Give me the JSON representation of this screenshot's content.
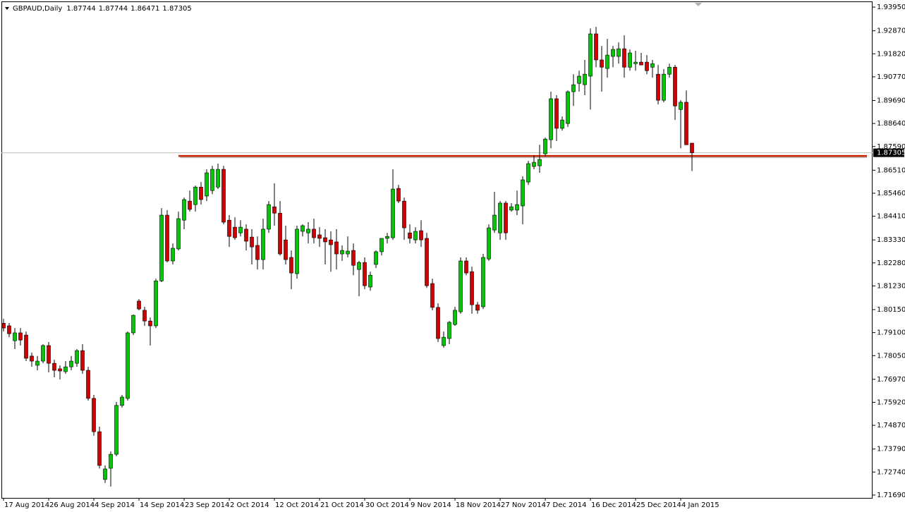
{
  "chart_data": {
    "type": "candlestick",
    "title": "GBPAUD,Daily",
    "up_color": "#00c800",
    "down_color": "#d00000",
    "support_line": {
      "value": 1.8716,
      "color": "#cc2200"
    },
    "ylim": [
      1.7156,
      1.9421
    ],
    "yticks": [
      {
        "value": 1.9395,
        "label": "1.93950"
      },
      {
        "value": 1.9287,
        "label": "1.92870"
      },
      {
        "value": 1.9182,
        "label": "1.91820"
      },
      {
        "value": 1.9077,
        "label": "1.90770"
      },
      {
        "value": 1.8969,
        "label": "1.89690"
      },
      {
        "value": 1.8864,
        "label": "1.88640"
      },
      {
        "value": 1.8759,
        "label": "1.87590"
      },
      {
        "value": 1.8651,
        "label": "1.86510"
      },
      {
        "value": 1.8546,
        "label": "1.85460"
      },
      {
        "value": 1.8441,
        "label": "1.84410"
      },
      {
        "value": 1.8333,
        "label": "1.83330"
      },
      {
        "value": 1.8228,
        "label": "1.82280"
      },
      {
        "value": 1.8123,
        "label": "1.81230"
      },
      {
        "value": 1.8015,
        "label": "1.80150"
      },
      {
        "value": 1.791,
        "label": "1.79100"
      },
      {
        "value": 1.7805,
        "label": "1.78050"
      },
      {
        "value": 1.7697,
        "label": "1.76970"
      },
      {
        "value": 1.7592,
        "label": "1.75920"
      },
      {
        "value": 1.7487,
        "label": "1.74870"
      },
      {
        "value": 1.7379,
        "label": "1.73790"
      },
      {
        "value": 1.7274,
        "label": "1.72740"
      },
      {
        "value": 1.7169,
        "label": "1.71690"
      }
    ],
    "categories": [
      "17 Aug 2014",
      null,
      null,
      null,
      null,
      null,
      null,
      null,
      "26 Aug 2014",
      null,
      null,
      null,
      null,
      null,
      null,
      null,
      "4 Sep 2014",
      null,
      null,
      null,
      null,
      null,
      null,
      null,
      "14 Sep 2014",
      null,
      null,
      null,
      null,
      null,
      null,
      null,
      "23 Sep 2014",
      null,
      null,
      null,
      null,
      null,
      null,
      null,
      "2 Oct 2014",
      null,
      null,
      null,
      null,
      null,
      null,
      null,
      "12 Oct 2014",
      null,
      null,
      null,
      null,
      null,
      null,
      null,
      "21 Oct 2014",
      null,
      null,
      null,
      null,
      null,
      null,
      null,
      "30 Oct 2014",
      null,
      null,
      null,
      null,
      null,
      null,
      null,
      "9 Nov 2014",
      null,
      null,
      null,
      null,
      null,
      null,
      null,
      "18 Nov 2014",
      null,
      null,
      null,
      null,
      null,
      null,
      null,
      "27 Nov 2014",
      null,
      null,
      null,
      null,
      null,
      null,
      null,
      "7 Dec 2014",
      null,
      null,
      null,
      null,
      null,
      null,
      null,
      "16 Dec 2014",
      null,
      null,
      null,
      null,
      null,
      null,
      null,
      "25 Dec 2014",
      null,
      null,
      null,
      null,
      null,
      null,
      null,
      "4 Jan 2015",
      null,
      null
    ],
    "open": [
      1.7953,
      1.7941,
      1.7873,
      1.7909,
      1.7899,
      1.7803,
      1.7761,
      1.778,
      1.7851,
      1.777,
      1.7745,
      1.7732,
      1.7754,
      1.777,
      1.7828,
      1.7738,
      1.761,
      1.7458,
      1.724,
      1.7291,
      1.7355,
      1.7578,
      1.761,
      1.7909,
      1.8054,
      1.8012,
      1.7963,
      1.7941,
      1.8146,
      1.8446,
      1.8237,
      1.8292,
      1.8423,
      1.851,
      1.8494,
      1.8574,
      1.8533,
      1.8558,
      1.8574,
      1.8655,
      1.8423,
      1.8391,
      1.8365,
      1.8382,
      1.8346,
      1.8308,
      1.8243,
      1.8382,
      1.8484,
      1.8455,
      1.8333,
      1.8253,
      1.8179,
      1.8372,
      1.8365,
      1.8382,
      1.8356,
      1.8343,
      1.8333,
      1.8324,
      1.8269,
      1.8269,
      1.8285,
      1.8198,
      1.823,
      1.8118,
      1.8221,
      1.8279,
      1.834,
      1.8343,
      1.8568,
      1.851,
      1.8365,
      1.8333,
      1.8375,
      1.834,
      1.8134,
      1.8025,
      1.7851,
      1.7883,
      1.7947,
      1.8005,
      1.8237,
      1.8188,
      1.8037,
      1.8028,
      1.8246,
      1.8378,
      1.8365,
      1.8501,
      1.8469,
      1.8469,
      1.8488,
      1.8597,
      1.8668,
      1.8671,
      1.8726,
      1.879,
      1.8977,
      1.8842,
      1.8864,
      1.9009,
      1.9047,
      1.9041,
      1.908,
      1.9273,
      1.9154,
      1.9115,
      1.917,
      1.917,
      1.9205,
      1.9121,
      1.9137,
      1.9144,
      1.9144,
      1.9121,
      1.9089,
      1.897,
      1.9089,
      1.9121,
      1.8928,
      1.8961,
      1.87744
    ],
    "high": [
      1.7973,
      1.7954,
      1.7931,
      1.7931,
      1.7915,
      1.7819,
      1.7803,
      1.7857,
      1.7867,
      1.7786,
      1.7761,
      1.778,
      1.7803,
      1.7835,
      1.7857,
      1.7754,
      1.7626,
      1.7481,
      1.7304,
      1.7368,
      1.7594,
      1.7626,
      1.7915,
      1.7992,
      1.8063,
      1.8028,
      1.7979,
      1.8156,
      1.8478,
      1.8469,
      1.8317,
      1.8462,
      1.8526,
      1.8558,
      1.8581,
      1.8597,
      1.8655,
      1.8671,
      1.8681,
      1.8671,
      1.8446,
      1.8436,
      1.8423,
      1.8404,
      1.8382,
      1.8349,
      1.843,
      1.851,
      1.8591,
      1.851,
      1.8398,
      1.8285,
      1.8398,
      1.8404,
      1.8414,
      1.843,
      1.8391,
      1.8382,
      1.8372,
      1.8382,
      1.8308,
      1.8349,
      1.8317,
      1.8237,
      1.8253,
      1.8188,
      1.8285,
      1.8333,
      1.8365,
      1.8655,
      1.8584,
      1.8526,
      1.8404,
      1.8391,
      1.8423,
      1.8365,
      1.8156,
      1.8044,
      1.7915,
      1.7963,
      1.8028,
      1.8253,
      1.8253,
      1.8211,
      1.805,
      1.8269,
      1.8404,
      1.8552,
      1.851,
      1.851,
      1.8501,
      1.8558,
      1.8623,
      1.8693,
      1.8719,
      1.8767,
      1.88,
      1.9009,
      1.8993,
      1.8896,
      1.9015,
      1.9089,
      1.9105,
      1.9154,
      1.9298,
      1.9305,
      1.9218,
      1.925,
      1.9218,
      1.9234,
      1.9266,
      1.9202,
      1.9196,
      1.9186,
      1.9176,
      1.9154,
      1.9131,
      1.9112,
      1.9137,
      1.9131,
      1.897,
      1.9015,
      1.87744
    ],
    "low": [
      1.7915,
      1.7889,
      1.7835,
      1.7851,
      1.778,
      1.7754,
      1.7738,
      1.777,
      1.7729,
      1.7706,
      1.7696,
      1.7722,
      1.7738,
      1.7754,
      1.7722,
      1.76,
      1.7439,
      1.729,
      1.7224,
      1.7208,
      1.7346,
      1.7568,
      1.76,
      1.7899,
      1.8012,
      1.7941,
      1.7851,
      1.7931,
      1.814,
      1.823,
      1.8221,
      1.8285,
      1.8382,
      1.8462,
      1.8462,
      1.8494,
      1.851,
      1.8542,
      1.8565,
      1.8404,
      1.8301,
      1.8333,
      1.8349,
      1.8285,
      1.8221,
      1.8198,
      1.8198,
      1.8365,
      1.8398,
      1.8262,
      1.8221,
      1.8108,
      1.8156,
      1.8349,
      1.8317,
      1.8317,
      1.8301,
      1.8221,
      1.8188,
      1.8198,
      1.8237,
      1.8253,
      1.8172,
      1.8076,
      1.8108,
      1.8101,
      1.8205,
      1.8262,
      1.8317,
      1.8333,
      1.8501,
      1.8333,
      1.8317,
      1.8317,
      1.8301,
      1.8114,
      1.8012,
      1.7867,
      1.7841,
      1.7857,
      1.7941,
      1.7996,
      1.8172,
      1.7996,
      1.7996,
      1.8018,
      1.8237,
      1.8365,
      1.8333,
      1.8333,
      1.8462,
      1.8446,
      1.8404,
      1.8584,
      1.8655,
      1.8639,
      1.8713,
      1.8751,
      1.8784,
      1.8832,
      1.8848,
      1.8944,
      1.9009,
      1.8993,
      1.8928,
      1.9121,
      1.9009,
      1.9073,
      1.9121,
      1.9137,
      1.9073,
      1.9105,
      1.9105,
      1.9131,
      1.9089,
      1.9073,
      1.8951,
      1.8961,
      1.9073,
      1.888,
      1.8751,
      1.8767,
      1.86471
    ],
    "close": [
      1.7931,
      1.7905,
      1.7909,
      1.7876,
      1.7793,
      1.778,
      1.778,
      1.7851,
      1.777,
      1.7738,
      1.7735,
      1.7754,
      1.778,
      1.7828,
      1.7738,
      1.761,
      1.7458,
      1.7304,
      1.7288,
      1.7355,
      1.7578,
      1.7616,
      1.7909,
      1.7989,
      1.8018,
      1.7963,
      1.7941,
      1.8146,
      1.8446,
      1.8237,
      1.8295,
      1.843,
      1.8517,
      1.8472,
      1.8574,
      1.8517,
      1.8639,
      1.8655,
      1.8655,
      1.8414,
      1.8349,
      1.8343,
      1.8391,
      1.8327,
      1.8301,
      1.8243,
      1.8382,
      1.8494,
      1.8455,
      1.8269,
      1.8243,
      1.8182,
      1.8382,
      1.8398,
      1.8382,
      1.8343,
      1.834,
      1.8324,
      1.8311,
      1.8269,
      1.8285,
      1.8282,
      1.8217,
      1.823,
      1.8124,
      1.8172,
      1.8279,
      1.834,
      1.8349,
      1.8565,
      1.851,
      1.8388,
      1.834,
      1.8372,
      1.8333,
      1.8124,
      1.8025,
      1.7883,
      1.7889,
      1.7957,
      1.8012,
      1.8237,
      1.8182,
      1.8037,
      1.8012,
      1.8253,
      1.8388,
      1.8446,
      1.8501,
      1.8365,
      1.8484,
      1.8494,
      1.8607,
      1.8681,
      1.8687,
      1.87,
      1.8793,
      1.8977,
      1.8842,
      1.888,
      1.9009,
      1.9041,
      1.908,
      1.9089,
      1.9273,
      1.9154,
      1.9121,
      1.9176,
      1.9202,
      1.9205,
      1.9121,
      1.9186,
      1.9144,
      1.9131,
      1.9105,
      1.9137,
      1.897,
      1.9089,
      1.9121,
      1.8944,
      1.8961,
      1.8767,
      1.87305
    ]
  }
}
